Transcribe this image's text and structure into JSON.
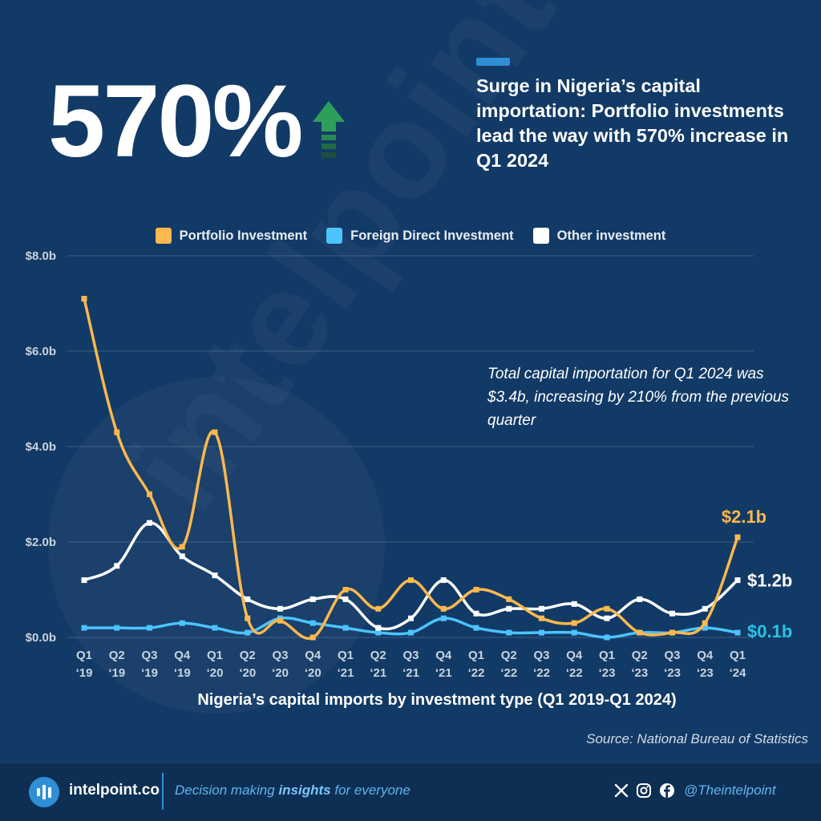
{
  "header": {
    "big_stat": "570%",
    "headline": "Surge in Nigeria’s capital importation: Portfolio investments lead the way with 570% increase in Q1 2024"
  },
  "annotation": "Total capital importation for Q1 2024 was $3.4b, increasing by 210% from the previous quarter",
  "source": "Source: National Bureau of Statistics",
  "footer": {
    "brand": "intelpoint.co",
    "tagline_pre": "Decision making ",
    "tagline_bold": "insights",
    "tagline_post": " for everyone",
    "handle": "@Theintelpoint"
  },
  "watermark": "intelpoint",
  "colors": {
    "portfolio": "#ffb84d",
    "fdi": "#4cc3ff",
    "other": "#ffffff",
    "background": "#123a66"
  },
  "chart_data": {
    "type": "line",
    "title": "Nigeria’s capital imports by investment type (Q1 2019-Q1 2024)",
    "xlabel": "",
    "ylabel": "",
    "ylim": [
      0,
      8
    ],
    "yticks": [
      "$0.0b",
      "$2.0b",
      "$4.0b",
      "$6.0b",
      "$8.0b"
    ],
    "categories": [
      [
        "Q1",
        "‘19"
      ],
      [
        "Q2",
        "‘19"
      ],
      [
        "Q3",
        "‘19"
      ],
      [
        "Q4",
        "‘19"
      ],
      [
        "Q1",
        "‘20"
      ],
      [
        "Q2",
        "‘20"
      ],
      [
        "Q3",
        "‘20"
      ],
      [
        "Q4",
        "‘20"
      ],
      [
        "Q1",
        "‘21"
      ],
      [
        "Q2",
        "‘21"
      ],
      [
        "Q3",
        "‘21"
      ],
      [
        "Q4",
        "‘21"
      ],
      [
        "Q1",
        "‘22"
      ],
      [
        "Q2",
        "‘22"
      ],
      [
        "Q3",
        "‘22"
      ],
      [
        "Q4",
        "‘22"
      ],
      [
        "Q1",
        "‘23"
      ],
      [
        "Q2",
        "‘23"
      ],
      [
        "Q3",
        "‘23"
      ],
      [
        "Q4",
        "‘23"
      ],
      [
        "Q1",
        "‘24"
      ]
    ],
    "series": [
      {
        "name": "Portfolio Investment",
        "color": "#ffb84d",
        "values": [
          7.1,
          4.3,
          3.0,
          1.9,
          4.3,
          0.4,
          0.35,
          0.0,
          1.0,
          0.6,
          1.2,
          0.6,
          1.0,
          0.8,
          0.4,
          0.3,
          0.6,
          0.1,
          0.1,
          0.3,
          2.1
        ],
        "end_label": "$2.1b"
      },
      {
        "name": "Foreign Direct Investment",
        "color": "#4cc3ff",
        "values": [
          0.2,
          0.2,
          0.2,
          0.3,
          0.2,
          0.1,
          0.4,
          0.3,
          0.2,
          0.1,
          0.1,
          0.4,
          0.2,
          0.1,
          0.1,
          0.1,
          0.0,
          0.1,
          0.1,
          0.2,
          0.1
        ],
        "end_label": "$0.1b"
      },
      {
        "name": "Other investment",
        "color": "#ffffff",
        "values": [
          1.2,
          1.5,
          2.4,
          1.7,
          1.3,
          0.8,
          0.6,
          0.8,
          0.8,
          0.2,
          0.4,
          1.2,
          0.5,
          0.6,
          0.6,
          0.7,
          0.4,
          0.8,
          0.5,
          0.6,
          1.2
        ],
        "end_label": "$1.2b"
      }
    ],
    "legend": "top-center",
    "grid": true
  }
}
